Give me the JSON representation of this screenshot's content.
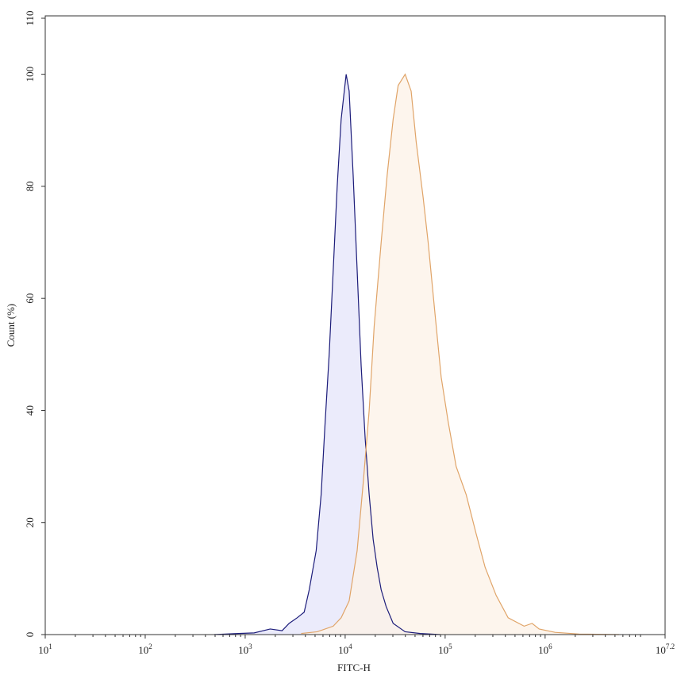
{
  "chart_data": {
    "type": "histogram-overlay",
    "x_label": "FITC-H",
    "y_label": "Count (%)",
    "log_x": true,
    "xlim": [
      10,
      15848931.92
    ],
    "ylim": [
      0,
      110
    ],
    "xticks": [
      {
        "value": 10,
        "label": "10",
        "exponent": "1"
      },
      {
        "value": 100,
        "label": "10",
        "exponent": "2"
      },
      {
        "value": 1000,
        "label": "10",
        "exponent": "3"
      },
      {
        "value": 10000,
        "label": "10",
        "exponent": "4"
      },
      {
        "value": 100000,
        "label": "10",
        "exponent": "5"
      },
      {
        "value": 1000000,
        "label": "10",
        "exponent": "6"
      },
      {
        "value": 15848931.92,
        "label": "10",
        "exponent": "7.2"
      }
    ],
    "yticks": [
      0,
      20,
      40,
      60,
      80,
      100,
      110
    ],
    "series": [
      {
        "color": "#1c1c7a",
        "fill": "#e6e6fa",
        "x": [
          490,
          850,
          1230,
          1780,
          2340,
          2750,
          3310,
          3890,
          4370,
          5130,
          5750,
          6310,
          6920,
          7590,
          8320,
          9120,
          10230,
          10960,
          12020,
          13180,
          14450,
          15850,
          17380,
          19050,
          20890,
          22910,
          25700,
          30200,
          39810,
          56230,
          89130
        ],
        "values": [
          0,
          0.2,
          0.3,
          1,
          0.7,
          2,
          3,
          4,
          8,
          15,
          25,
          38,
          50,
          65,
          80,
          92,
          100,
          97,
          82,
          65,
          48,
          35,
          25,
          17,
          12,
          8,
          5,
          2,
          0.5,
          0.2,
          0
        ]
      },
      {
        "color": "#e0a468",
        "fill": "#fdf3e8",
        "x": [
          3630,
          5250,
          7590,
          9120,
          10960,
          13180,
          15140,
          17380,
          19500,
          22910,
          26300,
          30200,
          33880,
          39810,
          45710,
          51290,
          60260,
          67610,
          79430,
          91200,
          107150,
          128820,
          162180,
          204170,
          251190,
          323590,
          426580,
          616600,
          741310,
          870960,
          1258930,
          2187760,
          5495410
        ],
        "values": [
          0.2,
          0.5,
          1.5,
          3,
          6,
          15,
          27,
          40,
          55,
          70,
          82,
          92,
          98,
          100,
          97,
          88,
          78,
          70,
          57,
          46,
          38,
          30,
          25,
          18,
          12,
          7,
          3,
          1.5,
          2,
          1,
          0.4,
          0.1,
          0
        ]
      }
    ]
  }
}
